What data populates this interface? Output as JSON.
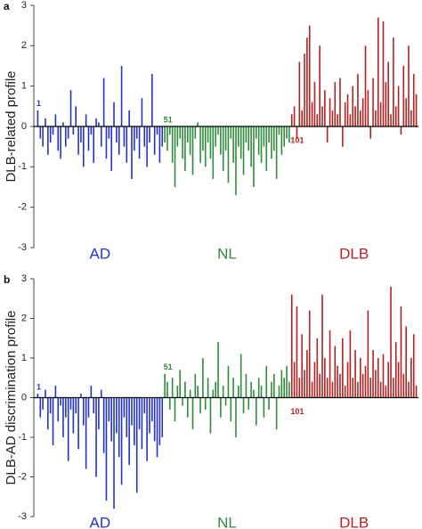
{
  "chart_data": [
    {
      "type": "bar",
      "panel_label": "a",
      "ylabel": "DLB-related profile",
      "ylim": [
        -3,
        3
      ],
      "yticks": [
        -3,
        -2,
        -1,
        0,
        1,
        2,
        3
      ],
      "annotations": [
        "1",
        "51",
        "101"
      ],
      "series": [
        {
          "name": "AD",
          "color": "#2233cc",
          "values": [
            0.4,
            -0.3,
            -0.5,
            0.2,
            -0.7,
            -0.4,
            -0.2,
            0.3,
            -0.6,
            -0.8,
            0.1,
            -0.5,
            -0.3,
            0.9,
            -0.2,
            0.5,
            -0.7,
            -0.4,
            -1.0,
            0.3,
            -0.6,
            -0.2,
            -0.9,
            0.2,
            0.1,
            -0.5,
            1.2,
            -0.8,
            -0.3,
            -1.1,
            0.6,
            -0.4,
            -0.7,
            1.5,
            -0.5,
            -0.9,
            0.4,
            -1.3,
            -0.6,
            -0.3,
            -0.8,
            0.7,
            -0.5,
            -1.0,
            -0.4,
            1.3,
            -0.7,
            -0.2,
            -0.9,
            -0.5
          ]
        },
        {
          "name": "NL",
          "color": "#2e8b3a",
          "values": [
            -0.4,
            -0.6,
            -0.2,
            -0.9,
            -1.5,
            -0.5,
            -0.3,
            -0.8,
            -1.1,
            -0.4,
            -0.7,
            -1.2,
            -0.3,
            0.1,
            -0.9,
            -0.6,
            -1.0,
            -0.4,
            -0.8,
            -1.3,
            -0.5,
            -0.2,
            -0.7,
            -1.1,
            -0.6,
            -1.4,
            -0.3,
            -0.9,
            -1.7,
            -0.5,
            -0.8,
            -1.2,
            -0.4,
            -0.6,
            -1.0,
            -1.5,
            -0.3,
            -0.7,
            -0.9,
            -0.5,
            -1.1,
            -0.4,
            -0.8,
            -0.6,
            -1.3,
            -0.2,
            -0.7,
            -0.5,
            -0.3,
            -0.4
          ]
        },
        {
          "name": "DLB",
          "color": "#b22222",
          "values": [
            0.3,
            0.5,
            -0.3,
            1.6,
            0.4,
            1.8,
            2.2,
            2.5,
            0.6,
            1.1,
            0.3,
            2.0,
            0.5,
            0.9,
            -0.4,
            0.7,
            0.4,
            1.1,
            0.3,
            1.2,
            -0.5,
            0.6,
            0.8,
            0.3,
            1.0,
            0.5,
            1.3,
            0.4,
            0.7,
            2.0,
            0.9,
            -0.3,
            1.2,
            0.4,
            2.7,
            0.6,
            2.6,
            1.1,
            1.6,
            0.3,
            2.2,
            0.5,
            1.0,
            -0.2,
            1.5,
            0.7,
            2.0,
            0.4,
            1.3,
            0.8
          ]
        }
      ]
    },
    {
      "type": "bar",
      "panel_label": "b",
      "ylabel": "DLB-AD discrimination profile",
      "ylim": [
        -3,
        3
      ],
      "yticks": [
        -3,
        -2,
        -1,
        0,
        1,
        2,
        3
      ],
      "annotations": [
        "1",
        "51",
        "101"
      ],
      "series": [
        {
          "name": "AD",
          "color": "#2233cc",
          "values": [
            0.1,
            -0.5,
            -0.3,
            0.2,
            -0.8,
            -0.4,
            -1.2,
            0.3,
            -0.6,
            -0.2,
            -1.0,
            -0.5,
            -1.6,
            -0.3,
            -0.9,
            -0.4,
            -1.3,
            0.1,
            -0.7,
            -1.8,
            -0.5,
            0.3,
            -0.4,
            -2.0,
            -0.8,
            0.2,
            -1.4,
            -2.6,
            -0.6,
            -1.1,
            -2.8,
            -0.9,
            -1.5,
            -2.2,
            -0.5,
            -1.0,
            -1.7,
            -0.7,
            -1.2,
            -2.4,
            -0.8,
            -1.3,
            -0.4,
            -1.6,
            -0.9,
            -0.6,
            -1.1,
            -1.5,
            -1.2,
            -1.0
          ]
        },
        {
          "name": "NL",
          "color": "#2e8b3a",
          "values": [
            0.6,
            0.4,
            -0.3,
            0.5,
            -0.6,
            0.3,
            0.7,
            -0.2,
            0.4,
            -0.5,
            0.2,
            -0.8,
            0.6,
            0.3,
            -0.4,
            1.0,
            -0.3,
            0.5,
            -0.9,
            0.2,
            0.4,
            1.4,
            -0.5,
            0.3,
            -0.2,
            0.8,
            -0.6,
            0.5,
            -1.0,
            0.3,
            1.1,
            -0.4,
            0.6,
            -0.3,
            0.4,
            0.2,
            -0.7,
            0.5,
            0.3,
            -0.5,
            0.8,
            -0.3,
            0.4,
            0.6,
            -0.8,
            0.3,
            0.7,
            0.5,
            0.8,
            0.4
          ]
        },
        {
          "name": "DLB",
          "color": "#b22222",
          "values": [
            2.6,
            0.9,
            2.3,
            0.5,
            1.6,
            0.7,
            1.2,
            2.2,
            0.4,
            0.9,
            1.5,
            0.6,
            2.6,
            1.0,
            0.5,
            1.7,
            0.4,
            1.3,
            0.8,
            0.6,
            1.5,
            0.3,
            0.9,
            1.7,
            0.5,
            1.2,
            0.4,
            1.0,
            0.6,
            0.8,
            2.2,
            0.5,
            1.2,
            0.7,
            1.0,
            0.4,
            1.1,
            0.3,
            0.9,
            2.8,
            0.5,
            1.4,
            0.9,
            2.3,
            0.6,
            1.8,
            0.4,
            1.0,
            1.6,
            0.3
          ]
        }
      ]
    }
  ]
}
